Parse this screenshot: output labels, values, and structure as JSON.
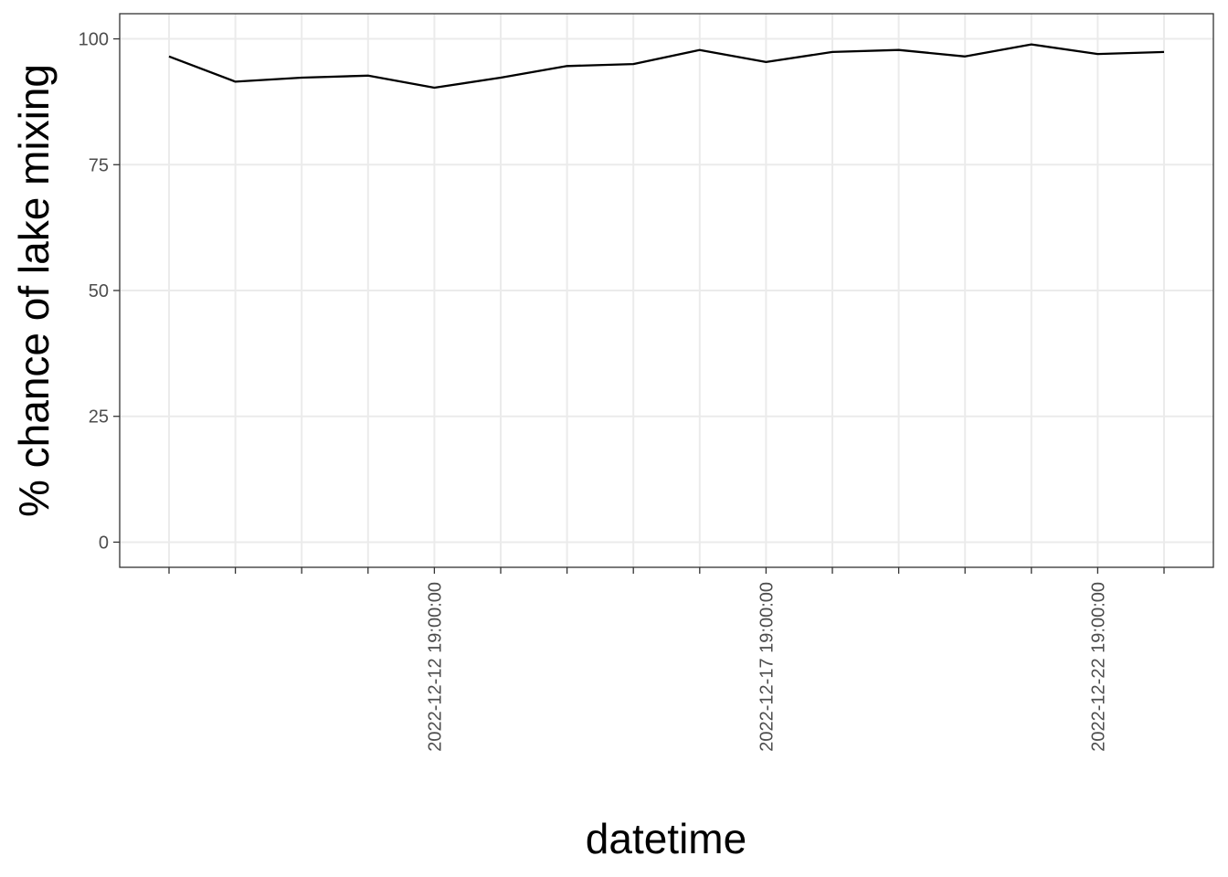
{
  "chart_data": {
    "type": "line",
    "title": "",
    "xlabel": "datetime",
    "ylabel": "% chance of lake mixing",
    "ylim": [
      -5,
      105
    ],
    "y_ticks": [
      0,
      25,
      50,
      75,
      100
    ],
    "y_tick_labels": [
      "0",
      "25",
      "50",
      "75",
      "100"
    ],
    "x_labeled_ticks": [
      "2022-12-12 19:00:00",
      "2022-12-17 19:00:00",
      "2022-12-22 19:00:00"
    ],
    "grid": true,
    "legend": "none",
    "series": [
      {
        "x": [
          "2022-12-08 19:00:00",
          "2022-12-09 19:00:00",
          "2022-12-10 19:00:00",
          "2022-12-11 19:00:00",
          "2022-12-12 19:00:00",
          "2022-12-13 19:00:00",
          "2022-12-14 19:00:00",
          "2022-12-15 19:00:00",
          "2022-12-16 19:00:00",
          "2022-12-17 19:00:00",
          "2022-12-18 19:00:00",
          "2022-12-19 19:00:00",
          "2022-12-20 19:00:00",
          "2022-12-21 19:00:00",
          "2022-12-22 19:00:00",
          "2022-12-23 19:00:00"
        ],
        "values": [
          96.5,
          91.5,
          92.3,
          92.7,
          90.3,
          92.3,
          94.6,
          95.0,
          97.8,
          95.4,
          97.4,
          97.8,
          96.5,
          98.9,
          97.0,
          97.4
        ]
      }
    ],
    "colors": {
      "line": "#000000",
      "grid": "#ebebeb",
      "panel_border": "#333333",
      "tick_text": "#4d4d4d",
      "axis_title": "#000000"
    }
  }
}
